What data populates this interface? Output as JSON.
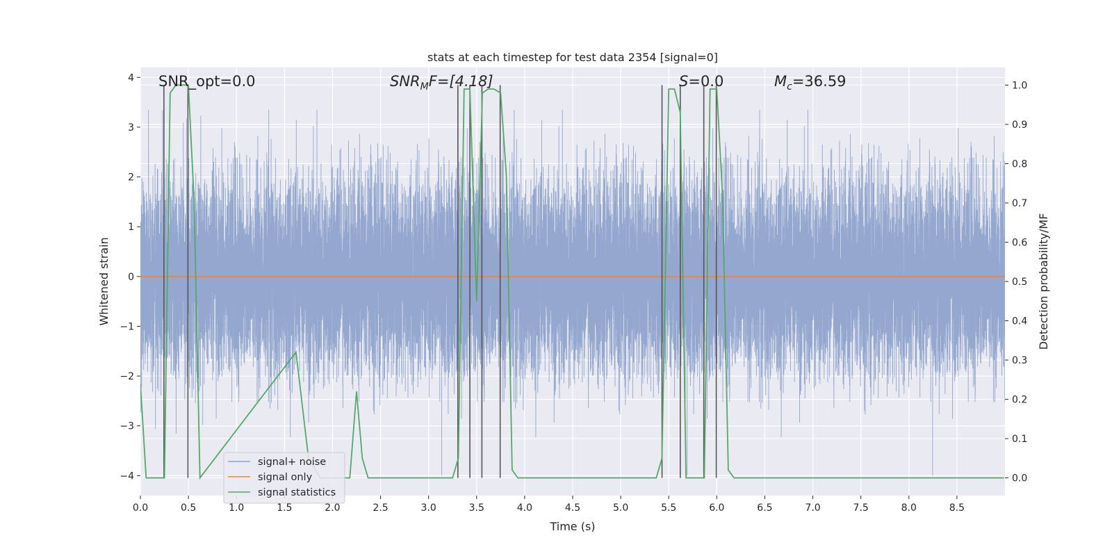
{
  "chart_data": {
    "type": "line",
    "title": "stats at each timestep for test data 2354 [signal=0]",
    "xlabel": "Time (s)",
    "ylabel": "Whitened strain",
    "y2label": "Detection probability/MF",
    "xlim": [
      0.0,
      9.0
    ],
    "ylim": [
      -4.4,
      4.2
    ],
    "y2lim": [
      -0.045,
      1.045
    ],
    "xticks": [
      "0.0",
      "0.5",
      "1.0",
      "1.5",
      "2.0",
      "2.5",
      "3.0",
      "3.5",
      "4.0",
      "4.5",
      "5.0",
      "5.5",
      "6.0",
      "6.5",
      "7.0",
      "7.5",
      "8.0",
      "8.5"
    ],
    "xtick_values": [
      0.0,
      0.5,
      1.0,
      1.5,
      2.0,
      2.5,
      3.0,
      3.5,
      4.0,
      4.5,
      5.0,
      5.5,
      6.0,
      6.5,
      7.0,
      7.5,
      8.0,
      8.5
    ],
    "yticks": [
      "4",
      "3",
      "2",
      "1",
      "0",
      "−1",
      "−2",
      "−3",
      "−4"
    ],
    "ytick_values": [
      4,
      3,
      2,
      1,
      0,
      -1,
      -2,
      -3,
      -4
    ],
    "y2ticks": [
      "1.0",
      "0.9",
      "0.8",
      "0.7",
      "0.6",
      "0.5",
      "0.4",
      "0.3",
      "0.2",
      "0.1",
      "0.0"
    ],
    "y2tick_values": [
      1.0,
      0.9,
      0.8,
      0.7,
      0.6,
      0.5,
      0.4,
      0.3,
      0.2,
      0.1,
      0.0
    ],
    "grid": true,
    "legend_position": "lower-left",
    "annotations": {
      "snr_opt": "SNR_opt=0.0",
      "snr_mf_main": "SNR",
      "snr_mf_sub": "M",
      "snr_mf_tail": "F=[4.18]",
      "s_main": "S",
      "s_tail": "=0.0",
      "mc_main": "M",
      "mc_sub": "c",
      "mc_tail": "=36.59"
    },
    "series": [
      {
        "name": "signal+ noise",
        "color": "#8fa3cc",
        "axis": "left",
        "noise_std": 0.95,
        "sample_rate": 2048,
        "y_range": [
          -4.0,
          3.35
        ]
      },
      {
        "name": "signal only",
        "color": "#dd8452",
        "axis": "left",
        "x": [
          0.0,
          9.0
        ],
        "y": [
          0.0,
          0.0
        ]
      },
      {
        "name": "signal statistics",
        "color": "#55a868",
        "axis": "right",
        "x": [
          0.0,
          0.06,
          0.25,
          0.31,
          0.37,
          0.43,
          0.5,
          0.56,
          0.62,
          1.62,
          1.75,
          1.87,
          2.0,
          2.06,
          2.18,
          2.25,
          2.31,
          2.37,
          3.25,
          3.31,
          3.37,
          3.43,
          3.5,
          3.56,
          3.62,
          3.68,
          3.75,
          3.81,
          3.87,
          3.93,
          5.37,
          5.43,
          5.5,
          5.56,
          5.62,
          5.68,
          5.75,
          5.81,
          5.87,
          5.93,
          6.0,
          6.06,
          6.12,
          6.18,
          8.99
        ],
        "y": [
          0.24,
          0.0,
          0.0,
          0.98,
          1.0,
          1.0,
          1.0,
          0.7,
          0.0,
          0.32,
          0.05,
          0.0,
          0.0,
          0.0,
          0.0,
          0.22,
          0.05,
          0.0,
          0.0,
          0.05,
          0.99,
          0.99,
          0.45,
          0.98,
          0.99,
          0.99,
          0.98,
          0.77,
          0.02,
          0.0,
          0.0,
          0.05,
          0.99,
          0.99,
          0.93,
          0.0,
          0.0,
          0.0,
          0.0,
          0.99,
          0.99,
          0.72,
          0.02,
          0.0,
          0.0
        ]
      }
    ],
    "vertical_lines": {
      "color": "#555555",
      "axis": "right",
      "segments": [
        {
          "x": 0.245,
          "y0": 0.0,
          "y1": 1.0
        },
        {
          "x": 0.495,
          "y0": 0.0,
          "y1": 1.0
        },
        {
          "x": 3.305,
          "y0": 0.0,
          "y1": 1.0
        },
        {
          "x": 3.43,
          "y0": 0.0,
          "y1": 1.0
        },
        {
          "x": 3.555,
          "y0": 0.0,
          "y1": 1.0
        },
        {
          "x": 3.745,
          "y0": 0.0,
          "y1": 1.0
        },
        {
          "x": 5.43,
          "y0": 0.0,
          "y1": 1.0
        },
        {
          "x": 5.62,
          "y0": 0.0,
          "y1": 1.0
        },
        {
          "x": 5.865,
          "y0": 0.0,
          "y1": 1.0
        },
        {
          "x": 5.995,
          "y0": 0.0,
          "y1": 1.0
        }
      ]
    }
  }
}
